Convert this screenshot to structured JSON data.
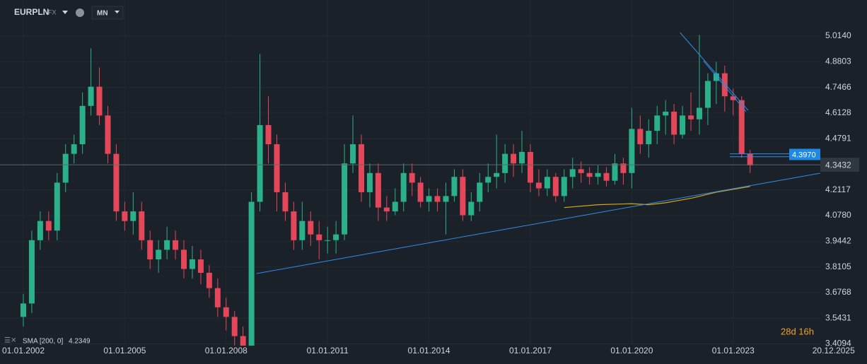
{
  "chart_data": {
    "type": "candlestick",
    "symbol": "EURPLN",
    "market": "FX",
    "interval": "MN",
    "x": [
      2002,
      2002.25,
      2002.5,
      2002.75,
      2003,
      2003.25,
      2003.5,
      2003.75,
      2004,
      2004.25,
      2004.5,
      2004.75,
      2005,
      2005.25,
      2005.5,
      2005.75,
      2006,
      2006.25,
      2006.5,
      2006.75,
      2007,
      2007.25,
      2007.5,
      2007.75,
      2008,
      2008.25,
      2008.5,
      2008.75,
      2009,
      2009.25,
      2009.5,
      2009.75,
      2010,
      2010.25,
      2010.5,
      2010.75,
      2011,
      2011.25,
      2011.5,
      2011.75,
      2012,
      2012.25,
      2012.5,
      2012.75,
      2013,
      2013.25,
      2013.5,
      2013.75,
      2014,
      2014.25,
      2014.5,
      2014.75,
      2015,
      2015.25,
      2015.5,
      2015.75,
      2016,
      2016.25,
      2016.5,
      2016.75,
      2017,
      2017.25,
      2017.5,
      2017.75,
      2018,
      2018.25,
      2018.5,
      2018.75,
      2019,
      2019.25,
      2019.5,
      2019.75,
      2020,
      2020.25,
      2020.5,
      2020.75,
      2021,
      2021.25,
      2021.5,
      2021.75,
      2022,
      2022.25,
      2022.5,
      2022.75,
      2023,
      2023.25,
      2023.5
    ],
    "open": [
      3.55,
      3.62,
      3.95,
      4.05,
      4.0,
      4.25,
      4.4,
      4.45,
      4.65,
      4.75,
      4.6,
      4.4,
      4.1,
      4.05,
      4.1,
      3.95,
      3.85,
      3.9,
      3.95,
      3.9,
      3.8,
      3.85,
      3.78,
      3.7,
      3.6,
      3.55,
      3.45,
      3.4,
      4.15,
      4.55,
      4.45,
      4.2,
      4.1,
      3.95,
      4.05,
      3.98,
      3.95,
      3.95,
      3.98,
      4.35,
      4.45,
      4.2,
      4.3,
      4.12,
      4.1,
      4.15,
      4.3,
      4.25,
      4.15,
      4.18,
      4.15,
      4.18,
      4.28,
      4.08,
      4.15,
      4.25,
      4.28,
      4.3,
      4.4,
      4.35,
      4.41,
      4.25,
      4.22,
      4.28,
      4.18,
      4.28,
      4.32,
      4.3,
      4.28,
      4.3,
      4.26,
      4.35,
      4.3,
      4.53,
      4.45,
      4.52,
      4.6,
      4.62,
      4.5,
      4.6,
      4.58,
      4.64,
      4.78,
      4.82,
      4.7,
      4.68,
      4.4
    ],
    "high": [
      3.67,
      4.0,
      4.1,
      4.1,
      4.3,
      4.45,
      4.5,
      4.72,
      4.95,
      4.85,
      4.65,
      4.45,
      4.15,
      4.2,
      4.15,
      4.0,
      3.95,
      4.02,
      4.0,
      3.95,
      3.92,
      3.9,
      3.82,
      3.75,
      3.65,
      3.58,
      3.5,
      4.2,
      4.92,
      4.7,
      4.5,
      4.25,
      4.15,
      4.15,
      4.1,
      4.05,
      4.02,
      4.05,
      4.45,
      4.6,
      4.5,
      4.35,
      4.35,
      4.18,
      4.22,
      4.35,
      4.35,
      4.28,
      4.22,
      4.22,
      4.25,
      4.32,
      4.32,
      4.2,
      4.3,
      4.35,
      4.5,
      4.45,
      4.45,
      4.52,
      4.45,
      4.32,
      4.32,
      4.3,
      4.32,
      4.38,
      4.36,
      4.33,
      4.34,
      4.33,
      4.4,
      4.38,
      4.64,
      4.6,
      4.58,
      4.65,
      4.68,
      4.66,
      4.65,
      4.72,
      5.02,
      4.82,
      4.88,
      4.86,
      4.74,
      4.7,
      4.42
    ],
    "low": [
      3.5,
      3.57,
      3.9,
      3.95,
      3.95,
      4.2,
      4.35,
      4.4,
      4.6,
      4.55,
      4.35,
      4.05,
      4.0,
      3.98,
      3.9,
      3.8,
      3.78,
      3.85,
      3.85,
      3.75,
      3.75,
      3.72,
      3.65,
      3.55,
      3.48,
      3.4,
      3.41,
      3.41,
      4.1,
      4.35,
      4.1,
      4.05,
      3.9,
      3.9,
      3.92,
      3.85,
      3.88,
      3.88,
      3.95,
      4.3,
      4.15,
      4.12,
      4.05,
      4.05,
      4.08,
      4.1,
      4.18,
      4.12,
      4.1,
      4.1,
      3.98,
      4.15,
      4.05,
      4.05,
      4.1,
      4.2,
      4.22,
      4.25,
      4.28,
      4.3,
      4.2,
      4.18,
      4.18,
      4.15,
      4.15,
      4.22,
      4.25,
      4.24,
      4.24,
      4.23,
      4.24,
      4.24,
      4.22,
      4.4,
      4.38,
      4.45,
      4.5,
      4.45,
      4.48,
      4.52,
      4.5,
      4.55,
      4.66,
      4.62,
      4.6,
      4.38,
      4.3
    ],
    "close": [
      3.62,
      3.95,
      4.05,
      4.0,
      4.25,
      4.4,
      4.45,
      4.65,
      4.75,
      4.6,
      4.4,
      4.1,
      4.05,
      4.1,
      3.95,
      3.85,
      3.9,
      3.95,
      3.9,
      3.8,
      3.85,
      3.78,
      3.7,
      3.6,
      3.55,
      3.45,
      3.4,
      4.15,
      4.55,
      4.45,
      4.2,
      4.1,
      3.95,
      4.05,
      3.98,
      3.95,
      3.95,
      3.98,
      4.35,
      4.45,
      4.2,
      4.3,
      4.12,
      4.1,
      4.15,
      4.3,
      4.25,
      4.15,
      4.18,
      4.15,
      4.18,
      4.28,
      4.08,
      4.15,
      4.25,
      4.28,
      4.3,
      4.4,
      4.35,
      4.41,
      4.25,
      4.22,
      4.28,
      4.18,
      4.28,
      4.32,
      4.3,
      4.28,
      4.3,
      4.26,
      4.35,
      4.3,
      4.53,
      4.45,
      4.52,
      4.6,
      4.62,
      4.5,
      4.6,
      4.58,
      4.64,
      4.78,
      4.82,
      4.7,
      4.68,
      4.4,
      4.34
    ],
    "up_color": "#2bb18a",
    "down_color": "#e5475a",
    "indicator": {
      "name": "SMA [200, 0]",
      "value": 4.2349,
      "color": "#d6a51e",
      "x": [
        2018.0,
        2019.0,
        2020.0,
        2020.5,
        2021.0,
        2021.8,
        2022.5,
        2023.5
      ],
      "values": [
        4.12,
        4.135,
        4.14,
        4.135,
        4.145,
        4.17,
        4.2,
        4.23
      ]
    },
    "trendlines": [
      {
        "color": "#2f8ee8",
        "x": [
          2008.9,
          2025.57
        ],
        "values": [
          3.776,
          4.299
        ]
      },
      {
        "color": "#2f8ee8",
        "x": [
          2021.43,
          2023.44
        ],
        "values": [
          5.032,
          4.627
        ]
      },
      {
        "color": "#2f8ee8",
        "x": [
          2022.12,
          2023.38
        ],
        "values": [
          4.885,
          4.62
        ]
      },
      {
        "color": "#2f8ee8",
        "x": [
          2022.9,
          2025.5
        ],
        "values": [
          4.4,
          4.4
        ]
      },
      {
        "color": "#2f8ee8",
        "x": [
          2022.9,
          2025.5
        ],
        "values": [
          4.385,
          4.385
        ]
      }
    ],
    "alert_price": {
      "value": 4.397,
      "label": "4.3970"
    },
    "last_price": 4.3432,
    "countdown": "28d 16h",
    "xlim": [
      2001.31,
      2026.31
    ],
    "xticks": [
      {
        "value": 2002,
        "label": "01.01.2002"
      },
      {
        "value": 2005,
        "label": "01.01.2005"
      },
      {
        "value": 2008,
        "label": "01.01.2008"
      },
      {
        "value": 2011,
        "label": "01.01.2011"
      },
      {
        "value": 2014,
        "label": "01.01.2014"
      },
      {
        "value": 2017,
        "label": "01.01.2017"
      },
      {
        "value": 2020,
        "label": "01.01.2020"
      },
      {
        "value": 2023,
        "label": "01.01.2023"
      },
      {
        "value": 2025.97,
        "label": "20.12.2025"
      }
    ],
    "ylim": [
      3.404,
      5.202
    ],
    "yticks": [
      {
        "value": 5.014,
        "label": "5.0140"
      },
      4.8803,
      4.7466,
      4.6128,
      4.4791,
      4.2117,
      {
        "value": 4.078,
        "label": "4.0780"
      },
      3.9442,
      3.8105,
      3.6768,
      3.5431,
      3.4094
    ],
    "grid": true
  }
}
